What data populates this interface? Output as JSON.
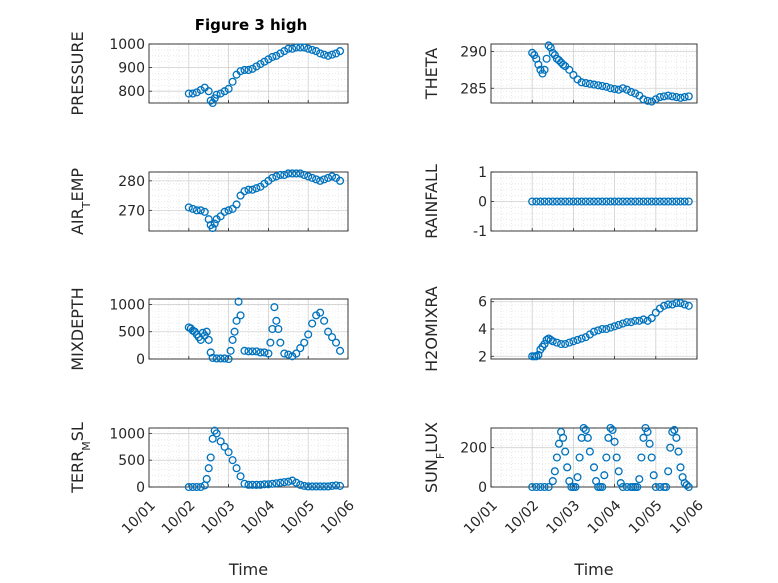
{
  "figure_title": "Figure 3 high",
  "marker_color": "#0072BD",
  "chart_data": [
    {
      "type": "scatter",
      "ylabel": "PRESSURE",
      "ylim": [
        750,
        1000
      ],
      "yticks": [
        800,
        900,
        1000
      ],
      "title": "Figure 3 high",
      "x": [
        1.0,
        1.1,
        1.2,
        1.3,
        1.4,
        1.5,
        1.55,
        1.6,
        1.65,
        1.7,
        1.8,
        1.9,
        2.0,
        2.1,
        2.2,
        2.3,
        2.4,
        2.5,
        2.6,
        2.7,
        2.8,
        2.9,
        3.0,
        3.1,
        3.2,
        3.3,
        3.4,
        3.5,
        3.6,
        3.7,
        3.8,
        3.9,
        4.0,
        4.1,
        4.2,
        4.3,
        4.4,
        4.5,
        4.6,
        4.7,
        4.8
      ],
      "y": [
        790,
        790,
        795,
        805,
        815,
        800,
        760,
        750,
        770,
        785,
        790,
        800,
        810,
        840,
        870,
        885,
        890,
        890,
        895,
        905,
        915,
        925,
        935,
        945,
        950,
        960,
        970,
        980,
        980,
        985,
        985,
        985,
        980,
        975,
        970,
        960,
        955,
        950,
        955,
        960,
        970
      ]
    },
    {
      "type": "scatter",
      "ylabel": "THETA",
      "ylim": [
        283,
        291
      ],
      "yticks": [
        285,
        290
      ],
      "x": [
        1.0,
        1.05,
        1.1,
        1.15,
        1.2,
        1.25,
        1.3,
        1.35,
        1.4,
        1.45,
        1.5,
        1.55,
        1.6,
        1.65,
        1.7,
        1.75,
        1.8,
        1.9,
        2.0,
        2.1,
        2.2,
        2.3,
        2.4,
        2.5,
        2.6,
        2.7,
        2.8,
        2.9,
        3.0,
        3.1,
        3.2,
        3.3,
        3.4,
        3.5,
        3.6,
        3.7,
        3.8,
        3.9,
        4.0,
        4.1,
        4.2,
        4.3,
        4.4,
        4.5,
        4.6,
        4.7,
        4.8
      ],
      "y": [
        289.8,
        289.5,
        289.0,
        288.2,
        287.5,
        287.0,
        287.5,
        289.0,
        290.8,
        290.5,
        289.8,
        289.5,
        289.0,
        288.8,
        288.5,
        288.2,
        288.0,
        287.5,
        286.8,
        286.2,
        285.8,
        285.7,
        285.6,
        285.5,
        285.4,
        285.3,
        285.2,
        285.0,
        284.9,
        284.8,
        285.0,
        284.8,
        284.5,
        284.3,
        284.0,
        283.5,
        283.3,
        283.2,
        283.5,
        283.8,
        283.9,
        284.0,
        283.9,
        283.8,
        283.7,
        283.8,
        283.9
      ]
    },
    {
      "type": "scatter",
      "ylabel": "AIR_TEMP",
      "ylim": [
        263,
        283
      ],
      "yticks": [
        270,
        280
      ],
      "x": [
        1.0,
        1.1,
        1.2,
        1.3,
        1.4,
        1.5,
        1.55,
        1.6,
        1.65,
        1.7,
        1.8,
        1.9,
        2.0,
        2.1,
        2.2,
        2.3,
        2.4,
        2.5,
        2.6,
        2.7,
        2.8,
        2.9,
        3.0,
        3.1,
        3.2,
        3.3,
        3.4,
        3.5,
        3.6,
        3.7,
        3.8,
        3.9,
        4.0,
        4.1,
        4.2,
        4.3,
        4.4,
        4.5,
        4.6,
        4.7,
        4.8
      ],
      "y": [
        271,
        270.5,
        270,
        270,
        269.5,
        267,
        265,
        264,
        265.5,
        267,
        268,
        269.5,
        270,
        270.5,
        272,
        275,
        276.5,
        277,
        277,
        277.5,
        278,
        279,
        280,
        281,
        281.5,
        282,
        282,
        282.5,
        282.5,
        282.5,
        282.5,
        282,
        281.5,
        281,
        280.5,
        280,
        280.5,
        281,
        281.5,
        281,
        280
      ]
    },
    {
      "type": "scatter",
      "ylabel": "RAINFALL",
      "ylim": [
        -1,
        1
      ],
      "yticks": [
        -1,
        0,
        1
      ],
      "x": [
        1.0,
        1.1,
        1.2,
        1.3,
        1.4,
        1.5,
        1.6,
        1.7,
        1.8,
        1.9,
        2.0,
        2.1,
        2.2,
        2.3,
        2.4,
        2.5,
        2.6,
        2.7,
        2.8,
        2.9,
        3.0,
        3.1,
        3.2,
        3.3,
        3.4,
        3.5,
        3.6,
        3.7,
        3.8,
        3.9,
        4.0,
        4.1,
        4.2,
        4.3,
        4.4,
        4.5,
        4.6,
        4.7,
        4.8
      ],
      "y": [
        0,
        0,
        0,
        0,
        0,
        0,
        0,
        0,
        0,
        0,
        0,
        0,
        0,
        0,
        0,
        0,
        0,
        0,
        0,
        0,
        0,
        0,
        0,
        0,
        0,
        0,
        0,
        0,
        0,
        0,
        0,
        0,
        0,
        0,
        0,
        0,
        0,
        0,
        0
      ]
    },
    {
      "type": "scatter",
      "ylabel": "MIXDEPTH",
      "ylim": [
        0,
        1100
      ],
      "yticks": [
        0,
        500,
        1000
      ],
      "x": [
        1.0,
        1.05,
        1.1,
        1.15,
        1.2,
        1.25,
        1.3,
        1.35,
        1.4,
        1.45,
        1.5,
        1.55,
        1.6,
        1.7,
        1.8,
        1.9,
        2.0,
        2.05,
        2.1,
        2.15,
        2.2,
        2.25,
        2.3,
        2.4,
        2.5,
        2.6,
        2.7,
        2.8,
        2.9,
        3.0,
        3.05,
        3.1,
        3.15,
        3.2,
        3.25,
        3.3,
        3.4,
        3.5,
        3.6,
        3.7,
        3.8,
        3.9,
        4.0,
        4.1,
        4.2,
        4.3,
        4.4,
        4.5,
        4.6,
        4.7,
        4.8
      ],
      "y": [
        580,
        560,
        520,
        500,
        450,
        400,
        350,
        480,
        430,
        500,
        350,
        120,
        20,
        10,
        10,
        10,
        0,
        150,
        350,
        500,
        700,
        1050,
        800,
        150,
        140,
        140,
        140,
        120,
        120,
        100,
        300,
        550,
        950,
        700,
        550,
        300,
        100,
        80,
        50,
        100,
        200,
        300,
        450,
        650,
        800,
        850,
        700,
        500,
        400,
        300,
        150
      ]
    },
    {
      "type": "scatter",
      "ylabel": "H2OMIXRA",
      "ylim": [
        1.8,
        6.2
      ],
      "yticks": [
        2,
        4,
        6
      ],
      "x": [
        1.0,
        1.05,
        1.1,
        1.15,
        1.2,
        1.25,
        1.3,
        1.35,
        1.4,
        1.45,
        1.5,
        1.6,
        1.7,
        1.8,
        1.9,
        2.0,
        2.1,
        2.2,
        2.3,
        2.4,
        2.5,
        2.6,
        2.7,
        2.8,
        2.9,
        3.0,
        3.1,
        3.2,
        3.3,
        3.4,
        3.5,
        3.6,
        3.7,
        3.8,
        3.9,
        4.0,
        4.1,
        4.2,
        4.3,
        4.4,
        4.5,
        4.6,
        4.7,
        4.8
      ],
      "y": [
        2.0,
        2.0,
        2.0,
        2.1,
        2.5,
        2.7,
        2.9,
        3.2,
        3.3,
        3.2,
        3.1,
        3.0,
        2.9,
        2.9,
        3.0,
        3.1,
        3.2,
        3.3,
        3.4,
        3.6,
        3.8,
        3.9,
        4.0,
        4.0,
        4.1,
        4.2,
        4.3,
        4.4,
        4.5,
        4.5,
        4.6,
        4.6,
        4.7,
        4.6,
        4.8,
        5.2,
        5.5,
        5.7,
        5.8,
        5.8,
        5.9,
        5.9,
        5.8,
        5.7
      ]
    },
    {
      "type": "scatter",
      "ylabel": "TERR_MSL",
      "ylim": [
        0,
        1100
      ],
      "yticks": [
        0,
        500,
        1000
      ],
      "x": [
        1.0,
        1.1,
        1.2,
        1.3,
        1.4,
        1.45,
        1.5,
        1.55,
        1.6,
        1.65,
        1.7,
        1.8,
        1.9,
        2.0,
        2.1,
        2.2,
        2.3,
        2.4,
        2.5,
        2.6,
        2.7,
        2.8,
        2.9,
        3.0,
        3.1,
        3.2,
        3.3,
        3.4,
        3.5,
        3.6,
        3.7,
        3.8,
        3.9,
        4.0,
        4.1,
        4.2,
        4.3,
        4.4,
        4.5,
        4.6,
        4.7,
        4.8
      ],
      "y": [
        0,
        0,
        0,
        0,
        30,
        150,
        350,
        550,
        900,
        1050,
        1000,
        850,
        750,
        650,
        500,
        350,
        200,
        60,
        40,
        40,
        40,
        40,
        50,
        50,
        60,
        70,
        80,
        90,
        100,
        120,
        80,
        40,
        20,
        10,
        10,
        10,
        10,
        10,
        10,
        20,
        30,
        20
      ]
    },
    {
      "type": "scatter",
      "ylabel": "SUN_FLUX",
      "ylim": [
        0,
        300
      ],
      "yticks": [
        0,
        200
      ],
      "x": [
        1.0,
        1.1,
        1.2,
        1.3,
        1.4,
        1.5,
        1.55,
        1.6,
        1.65,
        1.7,
        1.75,
        1.8,
        1.85,
        1.9,
        1.95,
        2.0,
        2.05,
        2.1,
        2.15,
        2.2,
        2.25,
        2.3,
        2.35,
        2.4,
        2.5,
        2.55,
        2.6,
        2.65,
        2.7,
        2.75,
        2.8,
        2.85,
        2.9,
        2.95,
        3.0,
        3.05,
        3.1,
        3.15,
        3.2,
        3.3,
        3.4,
        3.45,
        3.5,
        3.55,
        3.6,
        3.65,
        3.7,
        3.75,
        3.8,
        3.85,
        3.9,
        3.95,
        4.0,
        4.1,
        4.2,
        4.25,
        4.3,
        4.35,
        4.4,
        4.45,
        4.5,
        4.55,
        4.6,
        4.65,
        4.7,
        4.75,
        4.8
      ],
      "y": [
        0,
        0,
        0,
        0,
        0,
        30,
        80,
        150,
        220,
        280,
        250,
        180,
        100,
        30,
        0,
        0,
        0,
        50,
        150,
        250,
        300,
        290,
        250,
        180,
        100,
        30,
        0,
        0,
        0,
        60,
        150,
        250,
        300,
        290,
        230,
        150,
        80,
        20,
        0,
        0,
        0,
        0,
        0,
        0,
        40,
        150,
        250,
        300,
        280,
        220,
        150,
        60,
        0,
        0,
        0,
        0,
        80,
        200,
        280,
        290,
        250,
        180,
        100,
        50,
        20,
        10,
        0
      ]
    }
  ],
  "x_axis": {
    "ticks": [
      "10/01",
      "10/02",
      "10/03",
      "10/04",
      "10/05",
      "10/06"
    ],
    "label": "Time"
  }
}
